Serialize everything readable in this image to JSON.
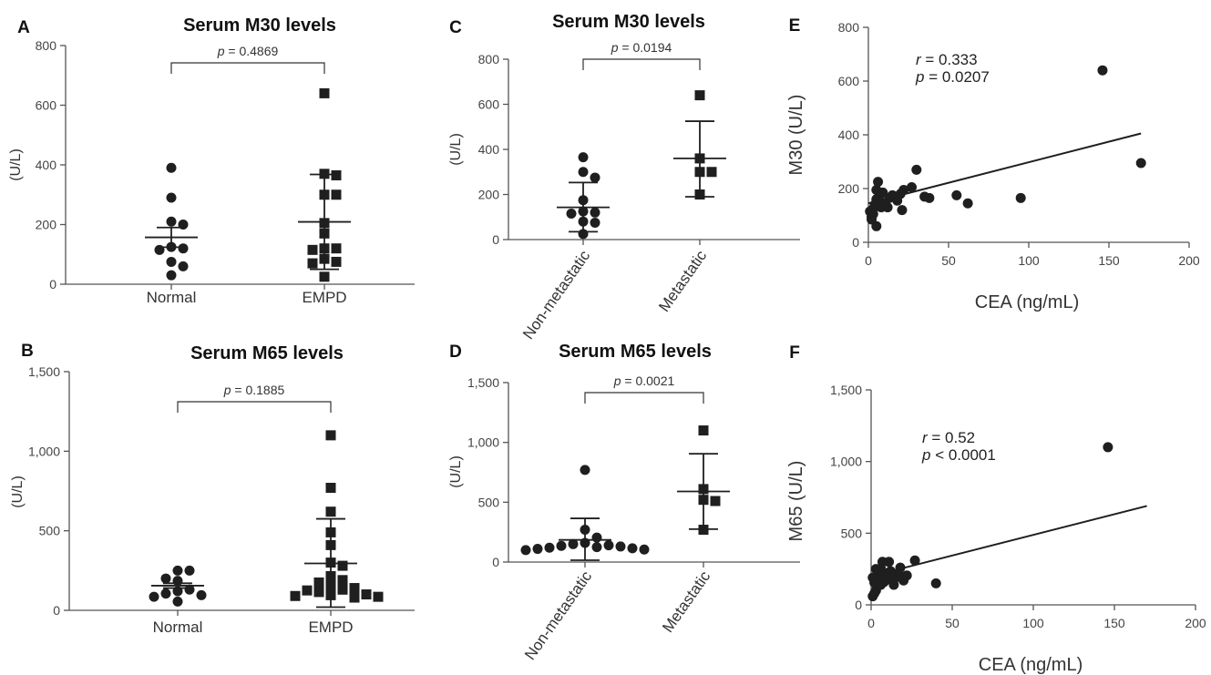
{
  "chart_data": [
    {
      "id": "A",
      "type": "scatter",
      "panel_label": "A",
      "title": "Serum M30 levels",
      "ylabel": "(U/L)",
      "ylim": [
        0,
        800
      ],
      "yticks": [
        0,
        200,
        400,
        600,
        800
      ],
      "ytick_labels": [
        "0",
        "200",
        "400",
        "600",
        "800"
      ],
      "categories": [
        "Normal",
        "EMPD"
      ],
      "pvalue": {
        "prefix": "p",
        "text": " = 0.4869"
      },
      "series": [
        {
          "marker": "circle",
          "values": [
            390,
            290,
            210,
            200,
            125,
            120,
            115,
            75,
            60,
            30
          ],
          "mean": 157,
          "err_low": 124,
          "err_high": 190
        },
        {
          "marker": "square",
          "values": [
            640,
            370,
            365,
            300,
            300,
            205,
            170,
            120,
            120,
            115,
            85,
            75,
            70,
            25
          ],
          "mean": 209,
          "err_low": 50,
          "err_high": 368
        }
      ]
    },
    {
      "id": "B",
      "type": "scatter",
      "panel_label": "B",
      "title": "Serum M65 levels",
      "ylabel": "(U/L)",
      "ylim": [
        0,
        1500
      ],
      "yticks": [
        0,
        500,
        1000,
        1500
      ],
      "ytick_labels": [
        "0",
        "500",
        "1,000",
        "1,500"
      ],
      "categories": [
        "Normal",
        "EMPD"
      ],
      "pvalue": {
        "prefix": "p",
        "text": " = 0.1885"
      },
      "series": [
        {
          "marker": "circle",
          "values": [
            250,
            250,
            200,
            185,
            130,
            120,
            105,
            95,
            85,
            55
          ],
          "mean": 155,
          "err_low": 140,
          "err_high": 170
        },
        {
          "marker": "square",
          "values": [
            1100,
            770,
            620,
            490,
            410,
            300,
            280,
            215,
            190,
            175,
            155,
            140,
            130,
            125,
            115,
            100,
            95,
            90,
            85,
            80
          ],
          "mean": 295,
          "err_low": 20,
          "err_high": 575
        }
      ]
    },
    {
      "id": "C",
      "type": "scatter",
      "panel_label": "C",
      "title": "Serum M30 levels",
      "ylabel": "(U/L)",
      "ylim": [
        0,
        800
      ],
      "yticks": [
        0,
        200,
        400,
        600,
        800
      ],
      "ytick_labels": [
        "0",
        "200",
        "400",
        "600",
        "800"
      ],
      "categories": [
        "Non-metastatic",
        "Metastatic"
      ],
      "pvalue": {
        "prefix": "p",
        "text": " = 0.0194"
      },
      "series": [
        {
          "marker": "circle",
          "values": [
            365,
            300,
            275,
            175,
            125,
            120,
            115,
            80,
            75,
            25
          ],
          "mean": 143,
          "err_low": 35,
          "err_high": 253
        },
        {
          "marker": "square",
          "values": [
            640,
            360,
            300,
            300,
            200
          ],
          "mean": 360,
          "err_low": 190,
          "err_high": 525
        }
      ]
    },
    {
      "id": "D",
      "type": "scatter",
      "panel_label": "D",
      "title": "Serum M65 levels",
      "ylabel": "(U/L)",
      "ylim": [
        0,
        1500
      ],
      "yticks": [
        0,
        500,
        1000,
        1500
      ],
      "ytick_labels": [
        "0",
        "500",
        "1,000",
        "1,500"
      ],
      "categories": [
        "Non-metastatic",
        "Metastatic"
      ],
      "pvalue": {
        "prefix": "p",
        "text": " = 0.0021"
      },
      "series": [
        {
          "marker": "circle",
          "values": [
            770,
            270,
            205,
            160,
            150,
            140,
            135,
            130,
            125,
            120,
            115,
            110,
            105,
            100
          ],
          "mean": 185,
          "err_low": 15,
          "err_high": 365
        },
        {
          "marker": "square",
          "values": [
            1100,
            610,
            520,
            510,
            270
          ],
          "mean": 590,
          "err_low": 275,
          "err_high": 905
        }
      ]
    },
    {
      "id": "E",
      "type": "scatter",
      "panel_label": "E",
      "xlabel": "CEA (ng/mL)",
      "ylabel": "M30 (U/L)",
      "xlim": [
        0,
        200
      ],
      "ylim": [
        0,
        800
      ],
      "xticks": [
        0,
        50,
        100,
        150,
        200
      ],
      "xtick_labels": [
        "0",
        "50",
        "100",
        "150",
        "200"
      ],
      "yticks": [
        0,
        200,
        400,
        600,
        800
      ],
      "ytick_labels": [
        "0",
        "200",
        "400",
        "600",
        "800"
      ],
      "stats": [
        {
          "italic": "r",
          "text": " = 0.333"
        },
        {
          "italic": "p",
          "text": " = 0.0207"
        }
      ],
      "fit": {
        "x": [
          0,
          170
        ],
        "y": [
          145,
          405
        ]
      },
      "points": [
        [
          146,
          640
        ],
        [
          170,
          295
        ],
        [
          95,
          165
        ],
        [
          62,
          145
        ],
        [
          55,
          175
        ],
        [
          38,
          165
        ],
        [
          35,
          170
        ],
        [
          30,
          270
        ],
        [
          27,
          205
        ],
        [
          22,
          195
        ],
        [
          20,
          180
        ],
        [
          18,
          155
        ],
        [
          21,
          120
        ],
        [
          15,
          175
        ],
        [
          13,
          165
        ],
        [
          12,
          130
        ],
        [
          10,
          145
        ],
        [
          9,
          185
        ],
        [
          8,
          130
        ],
        [
          7,
          155
        ],
        [
          6,
          225
        ],
        [
          5,
          195
        ],
        [
          5,
          160
        ],
        [
          4,
          140
        ],
        [
          3,
          105
        ],
        [
          2,
          95
        ],
        [
          1,
          115
        ],
        [
          2,
          85
        ],
        [
          5,
          60
        ],
        [
          3,
          125
        ]
      ]
    },
    {
      "id": "F",
      "type": "scatter",
      "panel_label": "F",
      "xlabel": "CEA (ng/mL)",
      "ylabel": "M65 (U/L)",
      "xlim": [
        0,
        200
      ],
      "ylim": [
        0,
        1500
      ],
      "xticks": [
        0,
        50,
        100,
        150,
        200
      ],
      "xtick_labels": [
        "0",
        "50",
        "100",
        "150",
        "200"
      ],
      "yticks": [
        0,
        500,
        1000,
        1500
      ],
      "ytick_labels": [
        "0",
        "500",
        "1,000",
        "1,500"
      ],
      "stats": [
        {
          "italic": "r",
          "text": " = 0.52"
        },
        {
          "italic": "p",
          "text": " < 0.0001"
        }
      ],
      "fit": {
        "x": [
          0,
          170
        ],
        "y": [
          200,
          690
        ]
      },
      "points": [
        [
          146,
          1100
        ],
        [
          40,
          150
        ],
        [
          27,
          310
        ],
        [
          22,
          205
        ],
        [
          20,
          170
        ],
        [
          18,
          260
        ],
        [
          17,
          215
        ],
        [
          15,
          190
        ],
        [
          14,
          140
        ],
        [
          12,
          235
        ],
        [
          11,
          300
        ],
        [
          10,
          180
        ],
        [
          9,
          220
        ],
        [
          8,
          160
        ],
        [
          7,
          300
        ],
        [
          6,
          255
        ],
        [
          5,
          175
        ],
        [
          5,
          210
        ],
        [
          4,
          130
        ],
        [
          3,
          250
        ],
        [
          3,
          100
        ],
        [
          2,
          155
        ],
        [
          2,
          80
        ],
        [
          1,
          60
        ],
        [
          1,
          190
        ],
        [
          6,
          140
        ]
      ]
    }
  ]
}
